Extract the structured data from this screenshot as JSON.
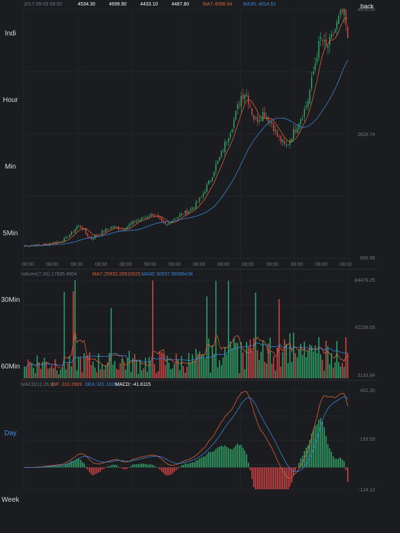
{
  "sidebar": {
    "items": [
      {
        "label": "Indi",
        "active": false
      },
      {
        "label": "Hour",
        "active": false
      },
      {
        "label": "Min",
        "active": false
      },
      {
        "label": "5Min",
        "active": false
      },
      {
        "label": "30Min",
        "active": false
      },
      {
        "label": "60Min",
        "active": false
      },
      {
        "label": "Day",
        "active": true
      },
      {
        "label": "Week",
        "active": false
      }
    ]
  },
  "back_label": "back",
  "header_info": {
    "date": "2017-09-03 08:00",
    "open": "4534.30",
    "high": "4699.90",
    "low": "4433.10",
    "close": "4487.80",
    "ma7_label": "MA7:",
    "ma7": "4598.04",
    "ma30_label": "MA30:",
    "ma30": "4014.52"
  },
  "price_axis": [
    "4970.00",
    "2828.74",
    "686.98"
  ],
  "time_ticks": [
    "08:00",
    "08:00",
    "08:00",
    "08:00",
    "08:00",
    "08:00",
    "08:00",
    "08:00",
    "08:00",
    "08:00",
    "08:00",
    "08:00",
    "08:00",
    "08:00"
  ],
  "volume_info": {
    "label": "Volume(7,30):17935.4004",
    "ma7_label": "MA7:",
    "ma7": "25932.28515625",
    "ma30_label": "MA30:",
    "ma30": "30637.58398438"
  },
  "volume_axis": [
    "84478.25",
    "42239.05",
    "3133.84"
  ],
  "macd_info": {
    "label": "MACD(12,26,9)",
    "dif_label": "DIF:",
    "dif": "310.2969",
    "dea_label": "DEA:",
    "dea": "331.1026",
    "macd_label": "MACD:",
    "macd": "-41.6115"
  },
  "macd_axis": [
    "431.30",
    "153.59",
    "-124.12"
  ],
  "colors": {
    "up": "#2fa567",
    "down": "#d94545",
    "ma7": "#e0643a",
    "ma30": "#3b88d9",
    "dif": "#e0643a",
    "dea": "#3b88d9",
    "grid": "#2a2c31"
  },
  "chart_data": {
    "type": "candlestick",
    "y_range": [
      686.98,
      4970.0
    ],
    "volume_range": [
      3133.84,
      84478.25
    ],
    "macd_range": [
      -124.12,
      431.3
    ],
    "closes": [
      900,
      905,
      912,
      908,
      920,
      935,
      950,
      960,
      975,
      1010,
      1080,
      1150,
      1250,
      1210,
      1100,
      1020,
      1080,
      1120,
      1160,
      1200,
      1230,
      1210,
      1180,
      1220,
      1280,
      1320,
      1350,
      1380,
      1420,
      1450,
      1380,
      1300,
      1250,
      1320,
      1380,
      1420,
      1460,
      1500,
      1560,
      1640,
      1750,
      1900,
      2050,
      2250,
      2400,
      2600,
      2800,
      3000,
      3250,
      3500,
      3550,
      3300,
      3050,
      3120,
      3200,
      3100,
      3000,
      2800,
      2700,
      2600,
      2750,
      2900,
      3050,
      3200,
      3400,
      3800,
      4200,
      4500,
      4300,
      4400,
      4600,
      4800,
      4950,
      4487.8
    ]
  }
}
